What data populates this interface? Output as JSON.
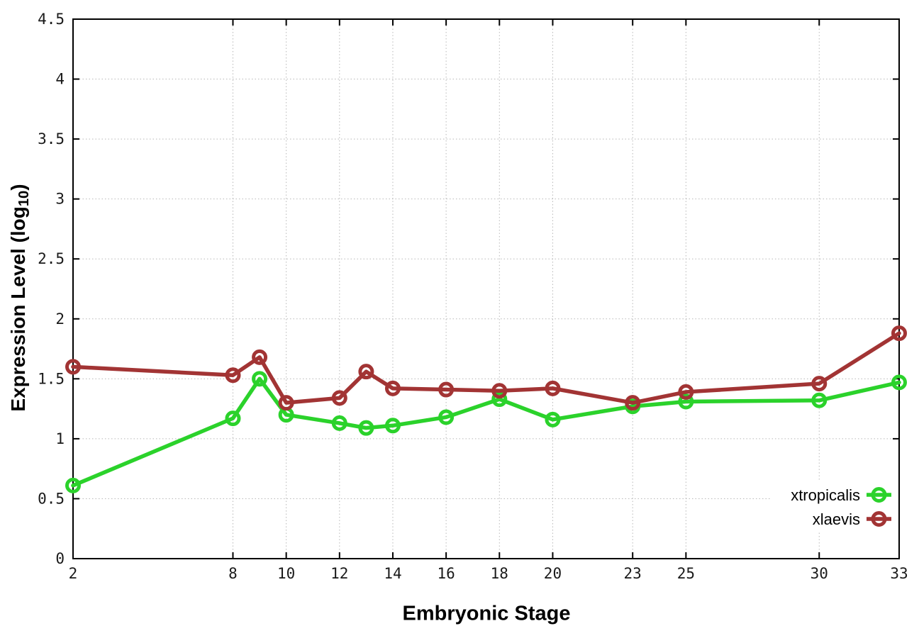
{
  "chart_data": {
    "type": "line",
    "title": "",
    "xlabel": "Embryonic Stage",
    "ylabel": {
      "main": "Expression Level (log",
      "sub": "10",
      "end": ")"
    },
    "xlim": [
      2,
      33
    ],
    "ylim": [
      0,
      4.5
    ],
    "x_ticks": [
      2,
      8,
      10,
      12,
      14,
      16,
      18,
      20,
      23,
      25,
      30,
      33
    ],
    "y_ticks": [
      0,
      0.5,
      1,
      1.5,
      2,
      2.5,
      3,
      3.5,
      4,
      4.5
    ],
    "y_tick_labels": [
      "0",
      "0.5",
      "1",
      "1.5",
      "2",
      "2.5",
      "3",
      "3.5",
      "4",
      "4.5"
    ],
    "grid": true,
    "legend_position": "bottom-right",
    "background_color": "#ffffff",
    "frame_color": "#000000",
    "grid_color": "#b8b8b8",
    "x": [
      2,
      8,
      9,
      10,
      12,
      13,
      14,
      16,
      18,
      20,
      23,
      25,
      30,
      33
    ],
    "series": [
      {
        "name": "xtropicalis",
        "color": "#2bd22b",
        "marker": "open-circle",
        "values": [
          0.61,
          1.17,
          1.5,
          1.2,
          1.13,
          1.09,
          1.11,
          1.18,
          1.33,
          1.16,
          1.27,
          1.31,
          1.32,
          1.47
        ]
      },
      {
        "name": "xlaevis",
        "color": "#a23434",
        "marker": "open-circle",
        "values": [
          1.6,
          1.53,
          1.68,
          1.3,
          1.34,
          1.56,
          1.42,
          1.41,
          1.4,
          1.42,
          1.3,
          1.39,
          1.46,
          1.88
        ]
      }
    ]
  }
}
